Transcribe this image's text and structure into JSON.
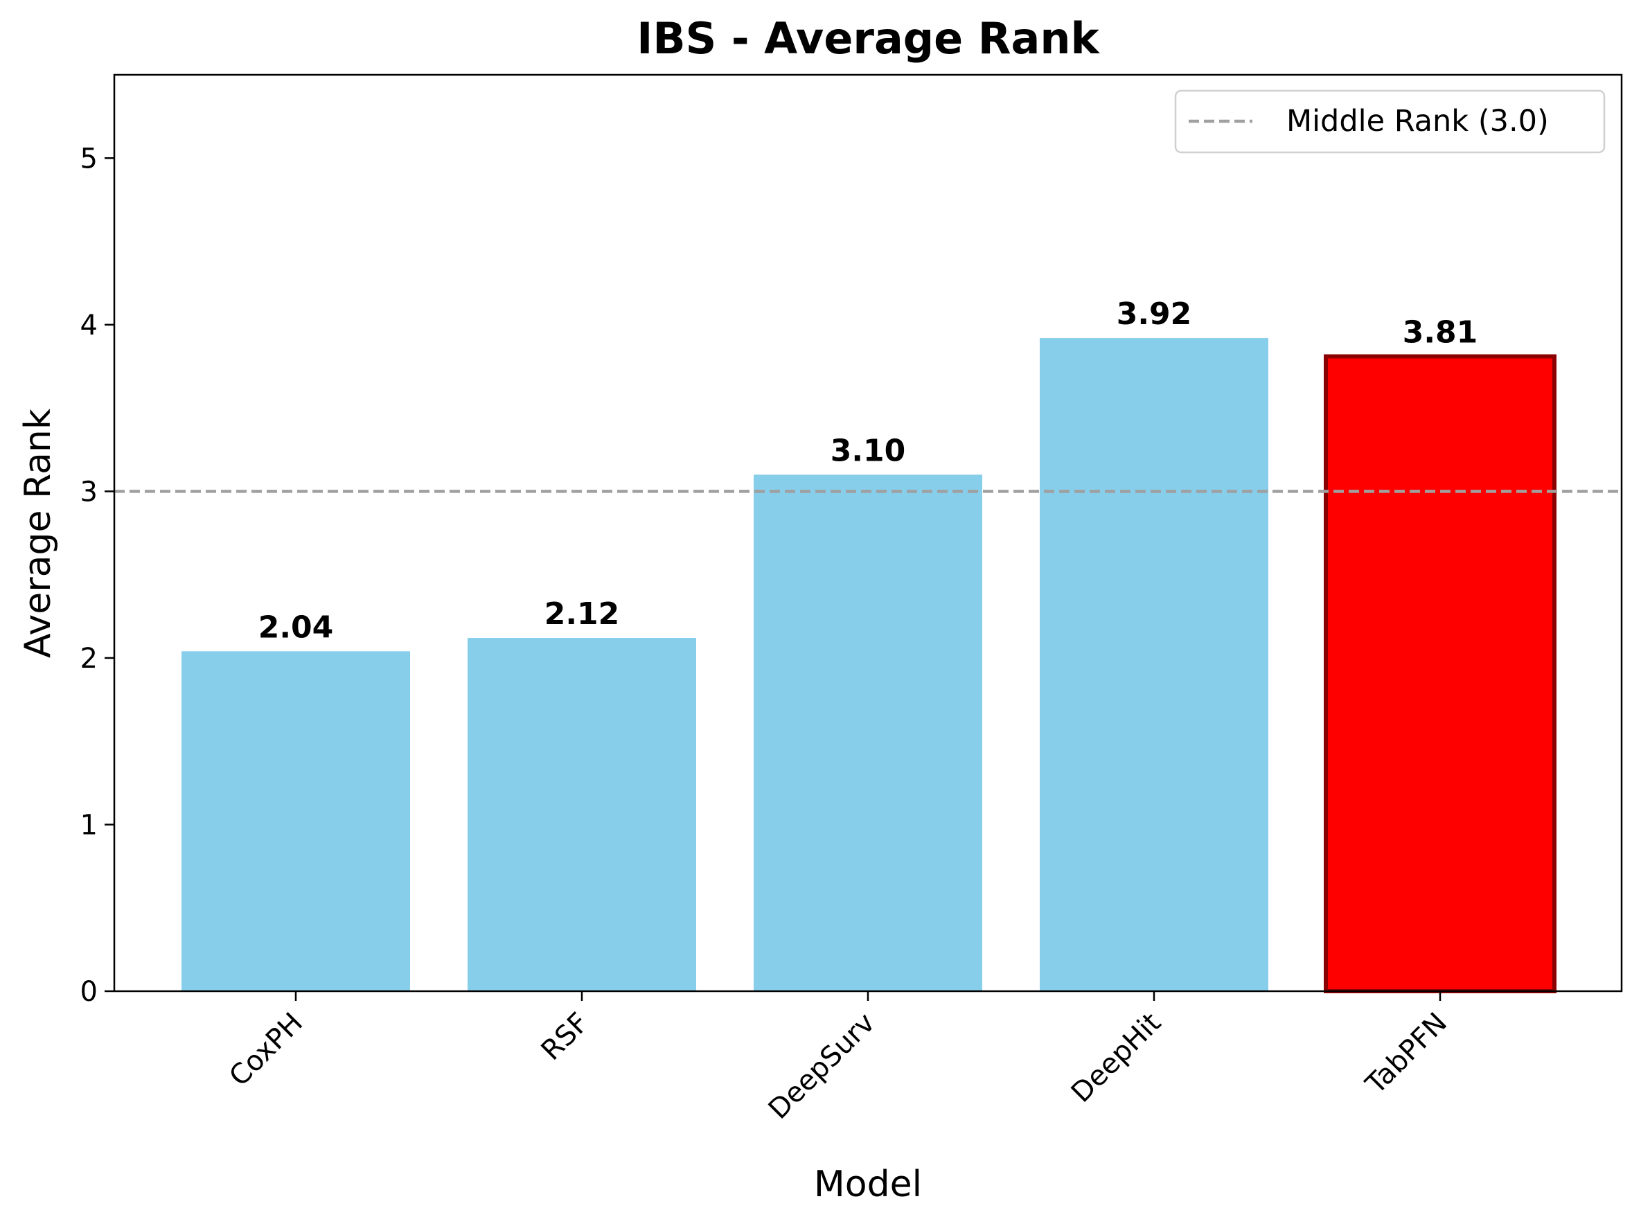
{
  "chart_data": {
    "type": "bar",
    "title": "IBS - Average Rank",
    "xlabel": "Model",
    "ylabel": "Average Rank",
    "categories": [
      "CoxPH",
      "RSF",
      "DeepSurv",
      "DeepHit",
      "TabPFN"
    ],
    "values": [
      2.04,
      2.12,
      3.1,
      3.92,
      3.81
    ],
    "value_labels": [
      "2.04",
      "2.12",
      "3.10",
      "3.92",
      "3.81"
    ],
    "ylim": [
      0,
      5.5
    ],
    "yticks": [
      "0",
      "1",
      "2",
      "3",
      "4",
      "5"
    ],
    "grid": false,
    "reference_line": {
      "value": 3.0,
      "label": "Middle Rank (3.0)",
      "color": "#a0a0a0",
      "style": "dashed"
    },
    "legend": {
      "position": "top-right"
    },
    "colors": {
      "default_bar": "#87ceeb",
      "highlight_bar": "#ff0000",
      "highlight_edge": "#8b0000"
    },
    "highlight": "TabPFN"
  }
}
